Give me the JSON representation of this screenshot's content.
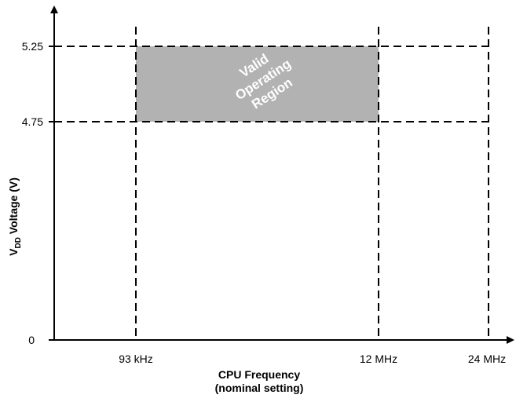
{
  "chart_data": {
    "type": "area",
    "title": "",
    "xlabel": [
      "CPU Frequency",
      "(nominal setting)"
    ],
    "ylabel": {
      "prefix": "V",
      "subscript": "DD",
      "suffix": " Voltage (V)"
    },
    "x_ticks": [
      "93 kHz",
      "12 MHz",
      "24 MHz"
    ],
    "y_ticks": [
      "0",
      "4.75",
      "5.25"
    ],
    "y_values": [
      0,
      4.75,
      5.25
    ],
    "region": {
      "label_lines": [
        "Valid",
        "Operating",
        "Region"
      ],
      "x_range": [
        "93 kHz",
        "12 MHz"
      ],
      "y_range": [
        4.75,
        5.25
      ],
      "fill_color": "#b2b2b2"
    },
    "grid": "dashed",
    "axis_color": "#000000"
  }
}
